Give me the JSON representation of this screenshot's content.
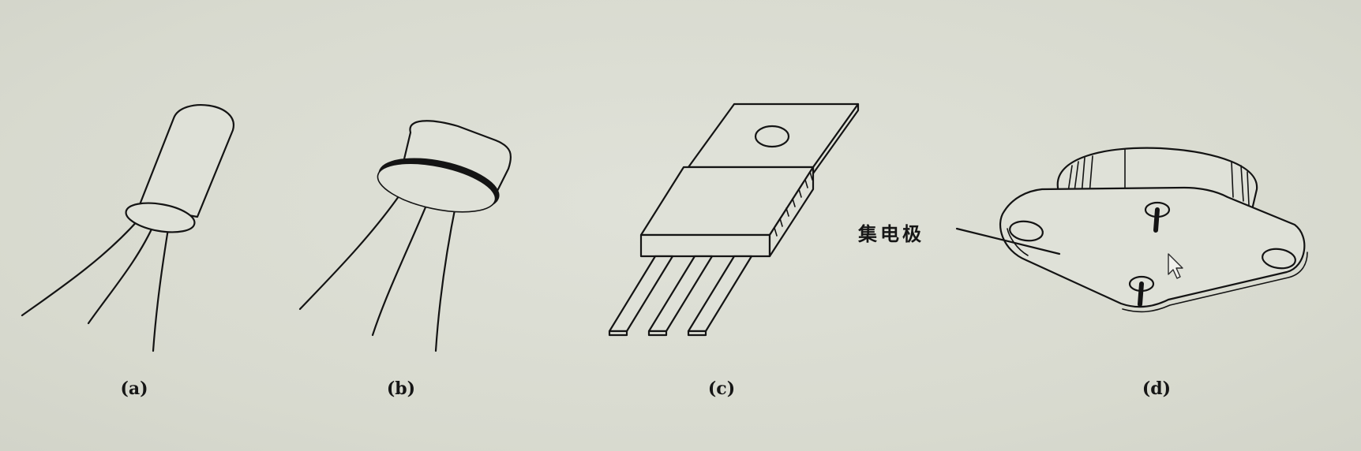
{
  "figures": [
    {
      "id": "a",
      "caption": "(a)"
    },
    {
      "id": "b",
      "caption": "(b)"
    },
    {
      "id": "c",
      "caption": "(c)"
    },
    {
      "id": "d",
      "caption": "(d)"
    }
  ],
  "callout": {
    "text": "集电极"
  },
  "icons": {
    "cursor": "mouse-pointer-icon"
  },
  "colors": {
    "background": "#dadcd2",
    "ink": "#141414"
  }
}
